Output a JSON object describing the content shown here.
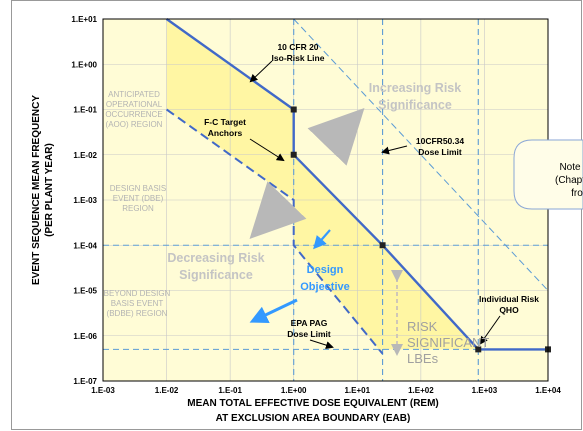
{
  "chart_data": {
    "type": "line",
    "xlabel_lines": [
      "MEAN TOTAL EFFECTIVE DOSE EQUIVALENT (REM)",
      "AT EXCLUSION AREA BOUNDARY (EAB)"
    ],
    "ylabel_lines": [
      "EVENT SEQUENCE MEAN FREQUENCY",
      "(PER PLANT YEAR)"
    ],
    "x_scale": "log",
    "y_scale": "log",
    "xlim": [
      0.001,
      10000
    ],
    "ylim": [
      1e-07,
      10
    ],
    "x_ticks": [
      "1.E-03",
      "1.E-02",
      "1.E-01",
      "1.E+00",
      "1.E+01",
      "1.E+02",
      "1.E+03",
      "1.E+04"
    ],
    "y_ticks": [
      "1.E+01",
      "1.E+00",
      "1.E-01",
      "1.E-02",
      "1.E-03",
      "1.E-04",
      "1.E-05",
      "1.E-06",
      "1.E-07"
    ],
    "plot_background": "#fffcd6",
    "frequency_target_fill": "#fff59a",
    "grid_color": "#c8c8c8",
    "line_color": "#4169c8",
    "dashed_guide_color": "#5b9bd5",
    "point_color": "#222222",
    "series": [
      {
        "name": "10 CFR 20 Iso-Risk Line",
        "style": "solid",
        "points": [
          [
            0.01,
            10
          ],
          [
            1,
            0.1
          ],
          [
            1,
            0.01
          ],
          [
            25,
            0.0001
          ],
          [
            800,
            5e-07
          ],
          [
            10000,
            5e-07
          ]
        ],
        "markers": [
          [
            1,
            0.1
          ],
          [
            1,
            0.01
          ],
          [
            25,
            0.0001
          ],
          [
            800,
            5e-07
          ],
          [
            10000,
            5e-07
          ]
        ]
      },
      {
        "style": "dashed",
        "points": [
          [
            0.01,
            0.1
          ],
          [
            1,
            0.001
          ],
          [
            1,
            0.0001
          ],
          [
            25,
            4e-07
          ]
        ]
      },
      {
        "style": "dashed-light",
        "points": [
          [
            1,
            10
          ],
          [
            10000,
            1e-05
          ]
        ]
      }
    ],
    "reference_lines": {
      "vertical": [
        1,
        25,
        800
      ],
      "horizontal": [
        0.0001,
        5e-07
      ]
    },
    "region_labels": [
      [
        "ANTICIPATED",
        "OPERATIONAL",
        "OCCURRENCE",
        "(AOO) REGION"
      ],
      [
        "DESIGN BASIS",
        "EVENT (DBE)",
        "REGION"
      ],
      [
        "BEYOND DESIGN",
        "BASIS EVENT",
        "(BDBE) REGION"
      ]
    ],
    "annotations": {
      "iso_risk": [
        "10 CFR 20",
        "Iso-Risk Line"
      ],
      "fc_target": [
        "F-C Target",
        "Anchors"
      ],
      "dose_limit_5034": [
        "10CFR50.34",
        "Dose Limit"
      ],
      "increasing": [
        "Increasing Risk",
        "Significance"
      ],
      "decreasing": [
        "Decreasing Risk",
        "Significance"
      ],
      "design_objective": [
        "Design",
        "Objective"
      ],
      "epa_pag": [
        "EPA PAG",
        "Dose Limit"
      ],
      "individual_qho": [
        "Individual Risk",
        "QHO"
      ],
      "risk_lbe": [
        "RISK",
        "SIGNIFICANT",
        "LBEs"
      ]
    }
  },
  "side_note": {
    "lines": [
      "Note",
      "(Chapt",
      "fro"
    ]
  }
}
